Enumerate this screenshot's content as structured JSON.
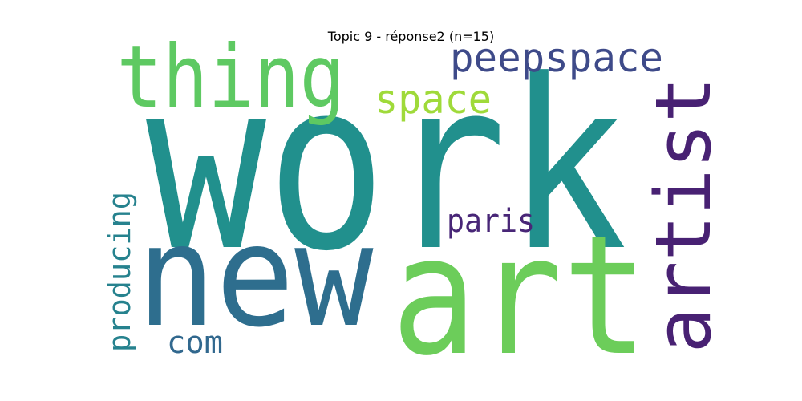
{
  "title": "Topic 9 - réponse2 (n=15)",
  "words": [
    {
      "text": "work",
      "color": "#21908d"
    },
    {
      "text": "art",
      "color": "#6ccd5a"
    },
    {
      "text": "new",
      "color": "#2e6e8e"
    },
    {
      "text": "thing",
      "color": "#5ec962"
    },
    {
      "text": "artist",
      "color": "#482173"
    },
    {
      "text": "peepspace",
      "color": "#3e4a89"
    },
    {
      "text": "space",
      "color": "#9fda3a"
    },
    {
      "text": "paris",
      "color": "#482677"
    },
    {
      "text": "producing",
      "color": "#26828e"
    },
    {
      "text": "com",
      "color": "#31688e"
    }
  ]
}
